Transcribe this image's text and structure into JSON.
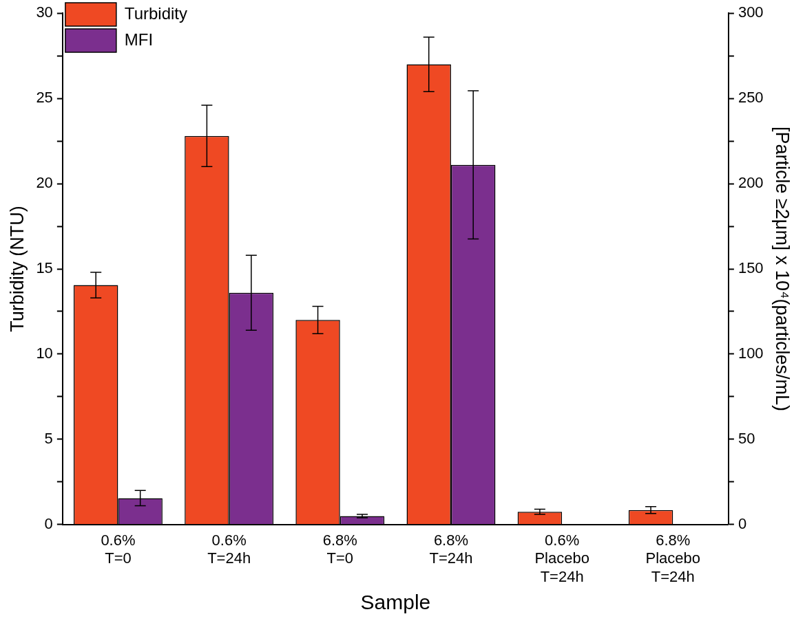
{
  "chart_data": {
    "type": "bar",
    "xlabel": "Sample",
    "ylabel": "Turbidity (NTU)",
    "y2label": "[Particle ≥2μm] x 10⁴(particles/mL)",
    "categories": [
      "0.6%\nT=0",
      "0.6%\nT=24h",
      "6.8%\nT=0",
      "6.8%\nT=24h",
      "0.6%\nPlacebo\nT=24h",
      "6.8%\nPlacebo\nT=24h"
    ],
    "series": [
      {
        "name": "Turbidity",
        "color": "#ef4923",
        "values": [
          14.05,
          22.8,
          12.0,
          27.0,
          0.75,
          0.85
        ],
        "errors": [
          0.75,
          1.8,
          0.8,
          1.6,
          0.15,
          0.2
        ]
      },
      {
        "name": "MFI",
        "color": "#7b2f8e",
        "axis": "y2",
        "values": [
          15.5,
          136,
          5,
          211,
          null,
          null
        ],
        "errors": [
          4.5,
          22,
          1,
          43.5,
          null,
          null
        ]
      }
    ],
    "ylim": [
      0,
      30
    ],
    "yticks": [
      0,
      {
        "value": 2.5,
        "label": null
      },
      5,
      {
        "value": 7.5,
        "label": null
      },
      10,
      {
        "value": 12.5,
        "label": null
      },
      15,
      {
        "value": 17.5,
        "label": null
      },
      20,
      {
        "value": 22.5,
        "label": null
      },
      25,
      {
        "value": 27.5,
        "label": null
      },
      30
    ],
    "y2lim": [
      0,
      300
    ],
    "y2ticks": [
      0,
      {
        "value": 25,
        "label": null
      },
      50,
      {
        "value": 75,
        "label": null
      },
      100,
      {
        "value": 125,
        "label": null
      },
      150,
      {
        "value": 175,
        "label": null
      },
      200,
      {
        "value": 225,
        "label": null
      },
      250,
      {
        "value": 275,
        "label": null
      },
      300
    ],
    "grid": false,
    "legend": "top left"
  }
}
